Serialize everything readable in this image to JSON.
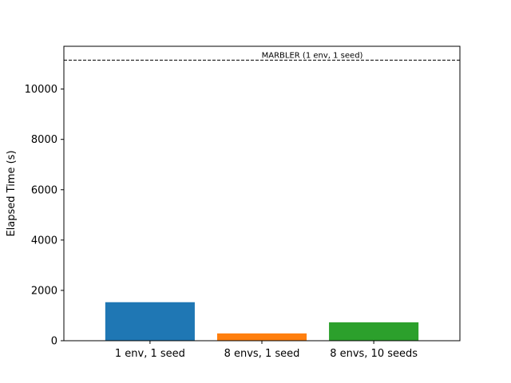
{
  "chart_data": {
    "type": "bar",
    "title": "",
    "xlabel": "",
    "ylabel": "Elapsed Time (s)",
    "categories": [
      "1 env, 1 seed",
      "8 envs, 1 seed",
      "8 envs, 10 seeds"
    ],
    "values": [
      1530,
      290,
      730
    ],
    "colors": [
      "#1f77b4",
      "#ff7f0e",
      "#2ca02c"
    ],
    "ylim": [
      0,
      11700
    ],
    "yticks": [
      0,
      2000,
      4000,
      6000,
      8000,
      10000
    ],
    "grid": false,
    "reference_line": {
      "label": "MARBLER (1 env, 1 seed)",
      "value": 11150,
      "style": "dashed",
      "color": "#000000"
    }
  }
}
